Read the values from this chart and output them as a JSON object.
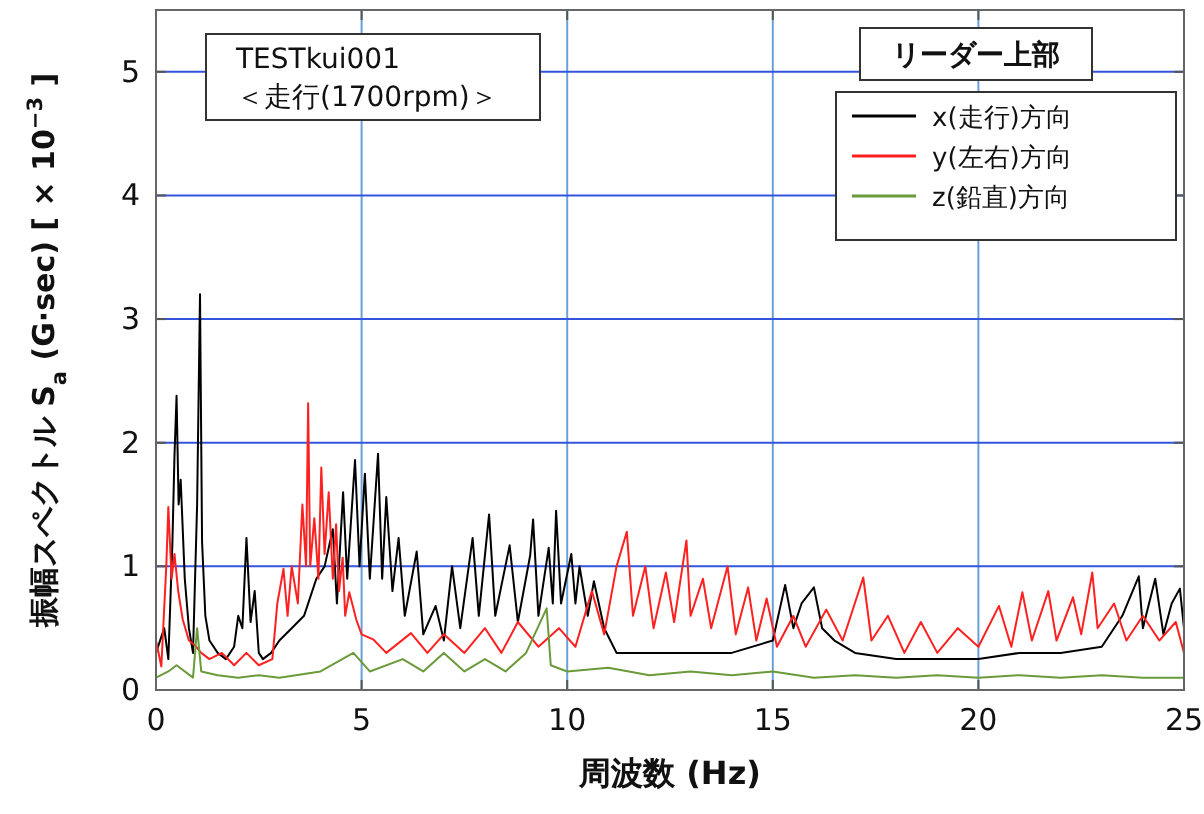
{
  "chart_data": {
    "type": "line",
    "xlabel": "周波数 (Hz)",
    "ylabel": "振幅スペクトル S$_{a}$ (G·sec) [ × 10$^{−3}$ ]",
    "legend_title": "リーダー上部",
    "legend": "top right",
    "grid": true,
    "xlim": [
      0,
      25
    ],
    "ylim": [
      0,
      5.5
    ],
    "xticks": [
      0,
      5,
      10,
      15,
      20,
      25
    ],
    "yticks": [
      0,
      1,
      2,
      3,
      4,
      5
    ],
    "annotations": [
      "TESTkui001",
      "＜走行(1700rpm)＞"
    ],
    "series": [
      {
        "name": "x(走行)方向",
        "color": "#000000",
        "x": [
          0,
          0.2,
          0.3,
          0.4,
          0.45,
          0.5,
          0.55,
          0.6,
          0.7,
          0.8,
          0.9,
          1.0,
          1.07,
          1.12,
          1.2,
          1.3,
          1.5,
          1.7,
          1.9,
          2.0,
          2.1,
          2.2,
          2.3,
          2.4,
          2.5,
          2.6,
          2.8,
          3.0,
          3.3,
          3.6,
          3.9,
          4.1,
          4.3,
          4.4,
          4.55,
          4.65,
          4.84,
          4.95,
          5.08,
          5.2,
          5.4,
          5.5,
          5.6,
          5.75,
          5.9,
          6.05,
          6.34,
          6.5,
          6.8,
          7.0,
          7.2,
          7.4,
          7.7,
          7.85,
          8.1,
          8.25,
          8.6,
          8.8,
          9.1,
          9.17,
          9.3,
          9.55,
          9.65,
          9.73,
          9.85,
          10.1,
          10.2,
          10.3,
          10.5,
          10.65,
          10.9,
          11.2,
          12,
          13,
          14,
          15,
          15.3,
          15.5,
          15.7,
          16.0,
          16.2,
          16.5,
          17,
          18,
          19,
          20,
          21,
          22,
          23,
          23.5,
          23.9,
          24.0,
          24.3,
          24.5,
          24.7,
          24.9,
          25
        ],
        "values": [
          0.3,
          0.5,
          0.25,
          1.2,
          1.9,
          2.38,
          1.5,
          1.7,
          0.9,
          0.5,
          0.3,
          1.5,
          3.2,
          1.2,
          0.6,
          0.4,
          0.3,
          0.25,
          0.35,
          0.6,
          0.5,
          1.23,
          0.55,
          0.8,
          0.3,
          0.25,
          0.3,
          0.4,
          0.5,
          0.6,
          0.9,
          1.0,
          1.3,
          0.7,
          1.6,
          0.9,
          1.86,
          1.0,
          1.75,
          0.9,
          1.91,
          0.9,
          1.56,
          0.8,
          1.23,
          0.6,
          1.12,
          0.45,
          0.68,
          0.4,
          1.0,
          0.5,
          1.23,
          0.6,
          1.42,
          0.6,
          1.17,
          0.55,
          1.09,
          1.38,
          0.6,
          1.15,
          0.7,
          1.45,
          0.7,
          1.1,
          0.7,
          1.0,
          0.6,
          0.88,
          0.5,
          0.3,
          0.3,
          0.3,
          0.3,
          0.4,
          0.85,
          0.5,
          0.7,
          0.83,
          0.5,
          0.4,
          0.3,
          0.25,
          0.25,
          0.25,
          0.3,
          0.3,
          0.35,
          0.6,
          0.92,
          0.5,
          0.9,
          0.45,
          0.7,
          0.82,
          0.5
        ]
      },
      {
        "name": "y(左右)方向",
        "color": "#ff2020",
        "x": [
          0,
          0.13,
          0.25,
          0.3,
          0.38,
          0.45,
          0.54,
          0.65,
          0.8,
          0.95,
          1.1,
          1.3,
          1.6,
          1.9,
          2.2,
          2.5,
          2.83,
          2.95,
          3.1,
          3.2,
          3.3,
          3.45,
          3.56,
          3.65,
          3.7,
          3.75,
          3.85,
          3.95,
          4.02,
          4.1,
          4.2,
          4.3,
          4.38,
          4.45,
          4.54,
          4.6,
          4.7,
          4.87,
          5.0,
          5.28,
          5.6,
          6.2,
          6.6,
          7.0,
          7.5,
          8.0,
          8.4,
          8.8,
          9.3,
          9.8,
          10.2,
          10.6,
          10.9,
          11.2,
          11.45,
          11.6,
          11.9,
          12.1,
          12.4,
          12.6,
          12.9,
          13.0,
          13.3,
          13.5,
          13.9,
          14.1,
          14.4,
          14.6,
          14.85,
          15.1,
          15.5,
          15.8,
          16.3,
          16.7,
          17.2,
          17.4,
          17.8,
          18.2,
          18.6,
          19.0,
          19.5,
          20.0,
          20.5,
          20.8,
          21.07,
          21.3,
          21.7,
          21.9,
          22.3,
          22.5,
          22.77,
          22.9,
          23.3,
          23.6,
          24.0,
          24.4,
          24.8,
          25
        ],
        "values": [
          0.4,
          0.19,
          1.0,
          1.48,
          0.9,
          1.1,
          0.8,
          0.57,
          0.4,
          0.36,
          0.3,
          0.25,
          0.3,
          0.2,
          0.3,
          0.2,
          0.25,
          0.7,
          0.98,
          0.6,
          1.0,
          0.7,
          1.5,
          1.0,
          2.32,
          1.0,
          1.39,
          0.9,
          1.8,
          1.1,
          1.6,
          0.9,
          1.34,
          0.8,
          1.07,
          0.6,
          0.79,
          0.57,
          0.45,
          0.41,
          0.3,
          0.46,
          0.3,
          0.45,
          0.3,
          0.5,
          0.3,
          0.55,
          0.35,
          0.5,
          0.35,
          0.8,
          0.45,
          1.0,
          1.28,
          0.6,
          1.0,
          0.5,
          0.95,
          0.55,
          1.21,
          0.6,
          0.9,
          0.5,
          1.0,
          0.45,
          0.83,
          0.4,
          0.74,
          0.35,
          0.6,
          0.35,
          0.65,
          0.4,
          0.91,
          0.4,
          0.6,
          0.3,
          0.55,
          0.3,
          0.5,
          0.35,
          0.68,
          0.35,
          0.79,
          0.4,
          0.8,
          0.4,
          0.75,
          0.45,
          0.95,
          0.5,
          0.7,
          0.4,
          0.6,
          0.4,
          0.55,
          0.3
        ]
      },
      {
        "name": "z(鉛直)方向",
        "color": "#6a9a3a",
        "x": [
          0,
          0.3,
          0.5,
          0.9,
          1.0,
          1.1,
          1.5,
          2.0,
          2.5,
          3,
          4,
          4.8,
          5.2,
          6,
          6.5,
          7,
          7.5,
          8,
          8.5,
          9,
          9.5,
          9.6,
          10,
          11,
          12,
          13,
          14,
          15,
          16,
          17,
          18,
          19,
          20,
          21,
          22,
          23,
          24,
          25
        ],
        "values": [
          0.1,
          0.15,
          0.2,
          0.1,
          0.5,
          0.15,
          0.12,
          0.1,
          0.12,
          0.1,
          0.15,
          0.3,
          0.15,
          0.25,
          0.15,
          0.3,
          0.15,
          0.25,
          0.15,
          0.3,
          0.66,
          0.2,
          0.15,
          0.18,
          0.12,
          0.15,
          0.12,
          0.15,
          0.1,
          0.12,
          0.1,
          0.12,
          0.1,
          0.12,
          0.1,
          0.12,
          0.1,
          0.1
        ]
      }
    ]
  }
}
